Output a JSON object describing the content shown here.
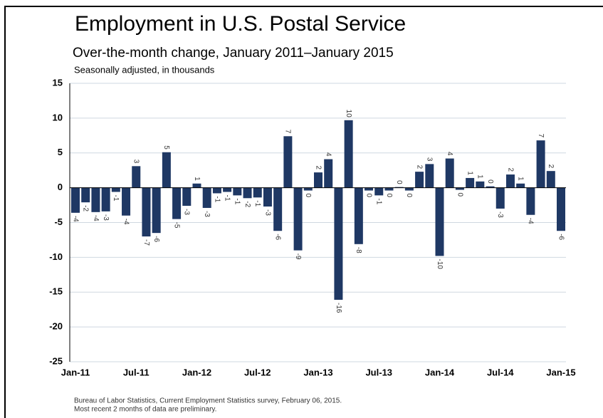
{
  "chart_data": {
    "type": "bar",
    "title": "Employment in U.S. Postal Service",
    "subtitle": "Over-the-month change, January 2011–January 2015",
    "note": "Seasonally adjusted, in thousands",
    "source": "Bureau of Labor Statistics, Current Employment Statistics survey, February 06, 2015.",
    "footnote": "Most recent 2 months of data are preliminary.",
    "categories": [
      "Jan-11",
      null,
      null,
      null,
      null,
      null,
      "Jul-11",
      null,
      null,
      null,
      null,
      null,
      "Jan-12",
      null,
      null,
      null,
      null,
      null,
      "Jul-12",
      null,
      null,
      null,
      null,
      null,
      "Jan-13",
      null,
      null,
      null,
      null,
      null,
      "Jul-13",
      null,
      null,
      null,
      null,
      null,
      "Jan-14",
      null,
      null,
      null,
      null,
      null,
      "Jul-14",
      null,
      null,
      null,
      null,
      null,
      "Jan-15"
    ],
    "values": [
      -3.6,
      -2.1,
      -3.5,
      -3.4,
      -0.6,
      -4.0,
      3.1,
      -7.0,
      -6.5,
      5.1,
      -4.5,
      -2.6,
      0.6,
      -2.9,
      -0.8,
      -0.6,
      -1.1,
      -1.5,
      -1.4,
      -2.7,
      -6.2,
      7.4,
      -9.0,
      -0.4,
      2.2,
      4.1,
      -16.1,
      9.7,
      -8.1,
      -0.4,
      -1.1,
      -0.4,
      0.1,
      -0.4,
      2.3,
      3.4,
      -9.8,
      4.2,
      -0.3,
      1.4,
      0.9,
      0.2,
      -3.0,
      1.9,
      0.6,
      -3.9,
      6.8,
      2.4,
      -6.2
    ],
    "value_labels": [
      "-4",
      "-2",
      "-4",
      "-3",
      "-1",
      "-4",
      "3",
      "-7",
      "-6",
      "5",
      "-5",
      "-3",
      "1",
      "-3",
      "-1",
      "-1",
      "-1",
      "-2",
      "-1",
      "-3",
      "-6",
      "7",
      "-9",
      "0",
      "2",
      "4",
      "-16",
      "10",
      "-8",
      "0",
      "-1",
      "0",
      "0",
      "0",
      "2",
      "3",
      "-10",
      "4",
      "0",
      "1",
      "1",
      "0",
      "-3",
      "2",
      "1",
      "-4",
      "7",
      "2",
      "-6"
    ],
    "color": "#1f3864",
    "ylim": [
      -25,
      15
    ],
    "yticks": [
      -25,
      -20,
      -15,
      -10,
      -5,
      0,
      5,
      10,
      15
    ],
    "grid": true
  }
}
